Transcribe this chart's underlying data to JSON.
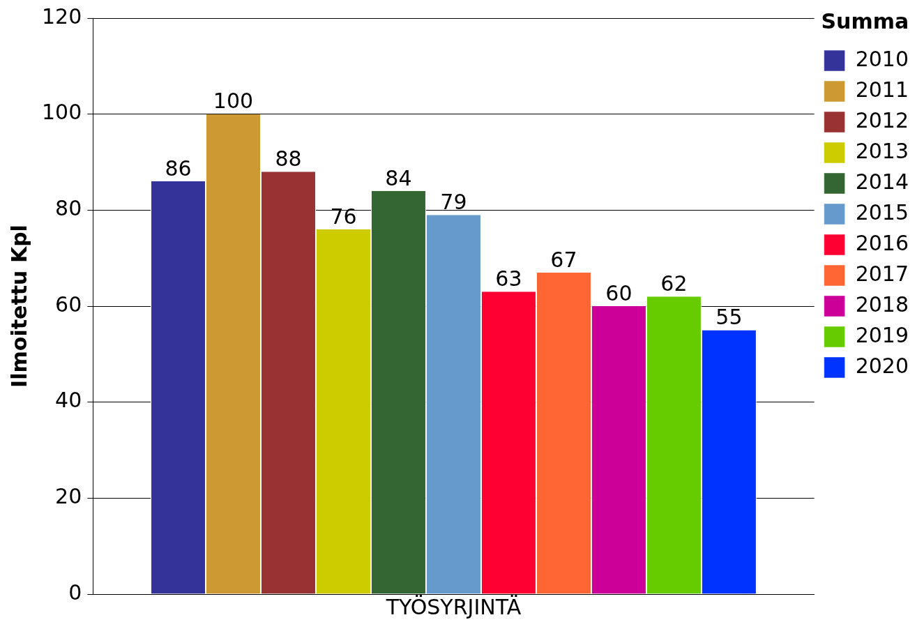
{
  "chart_data": {
    "type": "bar",
    "categories": [
      "TYÖSYRJINTÄ"
    ],
    "ylabel": "Ilmoitettu Kpl",
    "legend_title": "Summa",
    "legend": "right",
    "grid": "y",
    "data_labels": true,
    "ylim": [
      0,
      120
    ],
    "yticks": [
      0,
      20,
      40,
      60,
      80,
      100,
      120
    ],
    "series": [
      {
        "name": "2010",
        "color": "#333399",
        "values": [
          86
        ]
      },
      {
        "name": "2011",
        "color": "#cc9933",
        "values": [
          100
        ]
      },
      {
        "name": "2012",
        "color": "#993333",
        "values": [
          88
        ]
      },
      {
        "name": "2013",
        "color": "#cccc00",
        "values": [
          76
        ]
      },
      {
        "name": "2014",
        "color": "#336633",
        "values": [
          84
        ]
      },
      {
        "name": "2015",
        "color": "#6699cc",
        "values": [
          79
        ]
      },
      {
        "name": "2016",
        "color": "#ff0033",
        "values": [
          63
        ]
      },
      {
        "name": "2017",
        "color": "#ff6633",
        "values": [
          67
        ]
      },
      {
        "name": "2018",
        "color": "#cc0099",
        "values": [
          60
        ]
      },
      {
        "name": "2019",
        "color": "#66cc00",
        "values": [
          62
        ]
      },
      {
        "name": "2020",
        "color": "#0033ff",
        "values": [
          55
        ]
      }
    ]
  }
}
